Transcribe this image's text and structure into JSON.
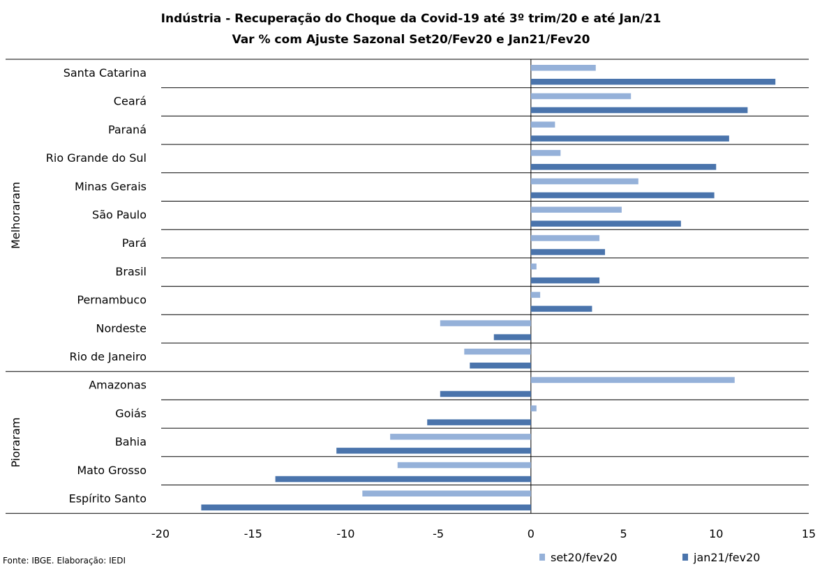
{
  "chart_data": {
    "type": "bar",
    "orientation": "horizontal",
    "title": "Indústria - Recuperação do Choque da Covid-19 até 3º trim/20 e até Jan/21",
    "subtitle": "Var % com Ajuste Sazonal Set20/Fev20 e Jan21/Fev20",
    "categories": [
      "Santa Catarina",
      "Ceará",
      "Paraná",
      "Rio Grande do Sul",
      "Minas Gerais",
      "São Paulo",
      "Pará",
      "Brasil",
      "Pernambuco",
      "Nordeste",
      "Rio de Janeiro",
      "Amazonas",
      "Goiás",
      "Bahia",
      "Mato Grosso",
      "Espírito Santo"
    ],
    "groups": [
      {
        "label": "Melhoraram",
        "categories": [
          "Santa Catarina",
          "Ceará",
          "Paraná",
          "Rio Grande do Sul",
          "Minas Gerais",
          "São Paulo",
          "Pará",
          "Brasil",
          "Pernambuco",
          "Nordeste",
          "Rio de Janeiro"
        ]
      },
      {
        "label": "Pioraram",
        "categories": [
          "Amazonas",
          "Goiás",
          "Bahia",
          "Mato Grosso",
          "Espírito Santo"
        ]
      }
    ],
    "series": [
      {
        "name": "set20/fev20",
        "color": "#95b1d9",
        "values": [
          3.5,
          5.4,
          1.3,
          1.6,
          5.8,
          4.9,
          3.7,
          0.3,
          0.5,
          -4.9,
          -3.6,
          11.0,
          0.3,
          -7.6,
          -7.2,
          -9.1
        ]
      },
      {
        "name": "jan21/fev20",
        "color": "#4a74ac",
        "values": [
          13.2,
          11.7,
          10.7,
          10.0,
          9.9,
          8.1,
          4.0,
          3.7,
          3.3,
          -2.0,
          -3.3,
          -4.9,
          -5.6,
          -10.5,
          -13.8,
          -17.8
        ]
      }
    ],
    "xlim": [
      -20,
      15
    ],
    "xticks": [
      "-20",
      "-15",
      "-10",
      "-5",
      "0",
      "5",
      "10",
      "15"
    ],
    "xtick_values": [
      -20,
      -15,
      -10,
      -5,
      0,
      5,
      10,
      15
    ],
    "grid": "horizontal category separators",
    "legend": "bottom-right"
  },
  "source_note": "Fonte: IBGE. Elaboração: IEDI"
}
